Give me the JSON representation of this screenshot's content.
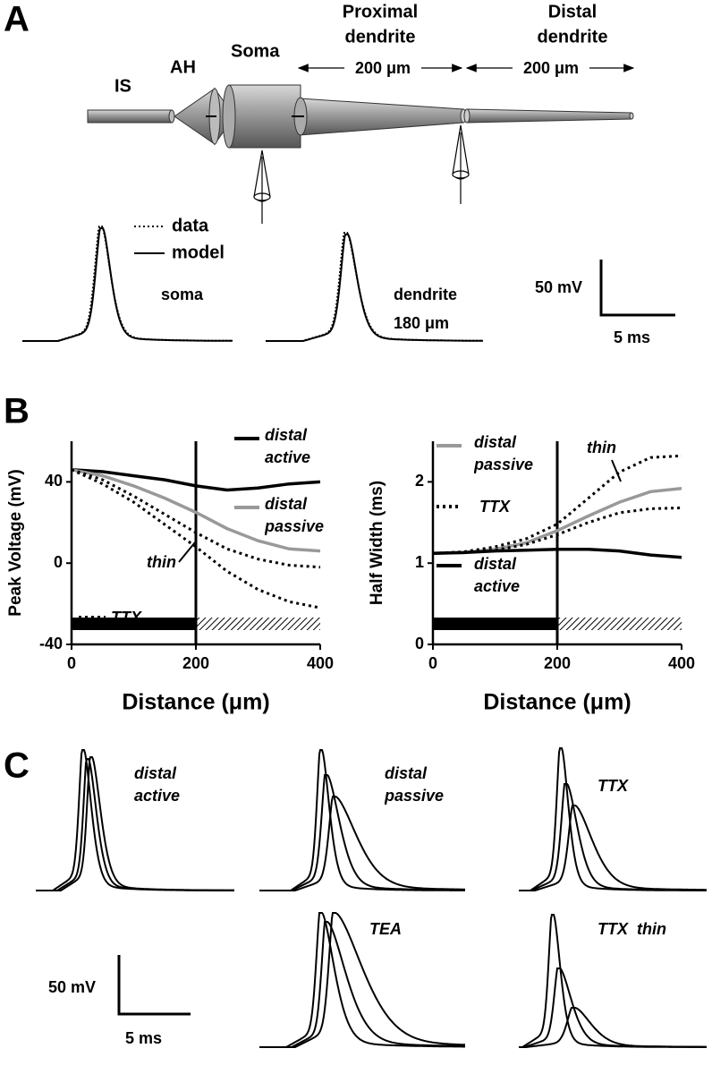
{
  "panel_labels": [
    "A",
    "B",
    "C"
  ],
  "panel_a": {
    "compartments": {
      "is": "IS",
      "ah": "AH",
      "soma": "Soma",
      "proximal": [
        "Proximal",
        "dendrite"
      ],
      "distal": [
        "Distal",
        "dendrite"
      ]
    },
    "lengths": [
      "200 μm",
      "200 μm"
    ],
    "legend": [
      "data",
      "model"
    ],
    "trace_labels": {
      "soma": "soma",
      "dendrite": [
        "dendrite",
        "180 μm"
      ]
    },
    "scale": [
      "50 mV",
      "5 ms"
    ]
  },
  "chart_data": [
    {
      "type": "line",
      "ylabel": "Peak Voltage (mV)",
      "xlabel": "Distance (μm)",
      "x": [
        0,
        50,
        100,
        150,
        200,
        250,
        300,
        350,
        400
      ],
      "xlim": [
        0,
        400
      ],
      "xticks": [
        0,
        200,
        400
      ],
      "ylim": [
        -40,
        60
      ],
      "yticks": [
        -40,
        0,
        40
      ],
      "series": [
        {
          "name": "distal active",
          "color": "#000000",
          "linestyle": "solid",
          "values": [
            46,
            45,
            43,
            41,
            38,
            36,
            37,
            39,
            40
          ]
        },
        {
          "name": "distal passive",
          "color": "#999999",
          "linestyle": "solid",
          "values": [
            46,
            43,
            38,
            32,
            25,
            17,
            11,
            7,
            6
          ]
        },
        {
          "name": "TTX",
          "color": "#000000",
          "linestyle": "dotted",
          "values": [
            46,
            41,
            33,
            24,
            15,
            7,
            2,
            -1,
            -2
          ]
        },
        {
          "name": "thin",
          "color": "#000000",
          "linestyle": "dotted",
          "values": [
            46,
            39,
            30,
            19,
            8,
            -4,
            -13,
            -19,
            -22
          ]
        }
      ]
    },
    {
      "type": "line",
      "ylabel": "Half Width (ms)",
      "xlabel": "Distance (μm)",
      "x": [
        0,
        50,
        100,
        150,
        200,
        250,
        300,
        350,
        400
      ],
      "xlim": [
        0,
        400
      ],
      "xticks": [
        0,
        200,
        400
      ],
      "ylim": [
        0,
        2.5
      ],
      "yticks": [
        0,
        1,
        2
      ],
      "series": [
        {
          "name": "distal passive",
          "color": "#999999",
          "linestyle": "solid",
          "values": [
            1.12,
            1.13,
            1.17,
            1.25,
            1.4,
            1.58,
            1.75,
            1.88,
            1.92
          ]
        },
        {
          "name": "TTX",
          "color": "#000000",
          "linestyle": "dotted",
          "values": [
            1.12,
            1.13,
            1.16,
            1.23,
            1.35,
            1.5,
            1.62,
            1.67,
            1.68
          ]
        },
        {
          "name": "distal active",
          "color": "#000000",
          "linestyle": "solid",
          "values": [
            1.12,
            1.13,
            1.15,
            1.16,
            1.17,
            1.17,
            1.15,
            1.1,
            1.07
          ]
        },
        {
          "name": "thin",
          "color": "#000000",
          "linestyle": "dotted",
          "values": [
            1.12,
            1.14,
            1.2,
            1.3,
            1.48,
            1.8,
            2.12,
            2.3,
            2.32
          ]
        }
      ]
    }
  ],
  "panel_c": {
    "traces": [
      "distal active",
      "distal passive",
      "TTX",
      "TEA",
      "TTX  thin"
    ],
    "scale": [
      "50 mV",
      "5 ms"
    ]
  }
}
